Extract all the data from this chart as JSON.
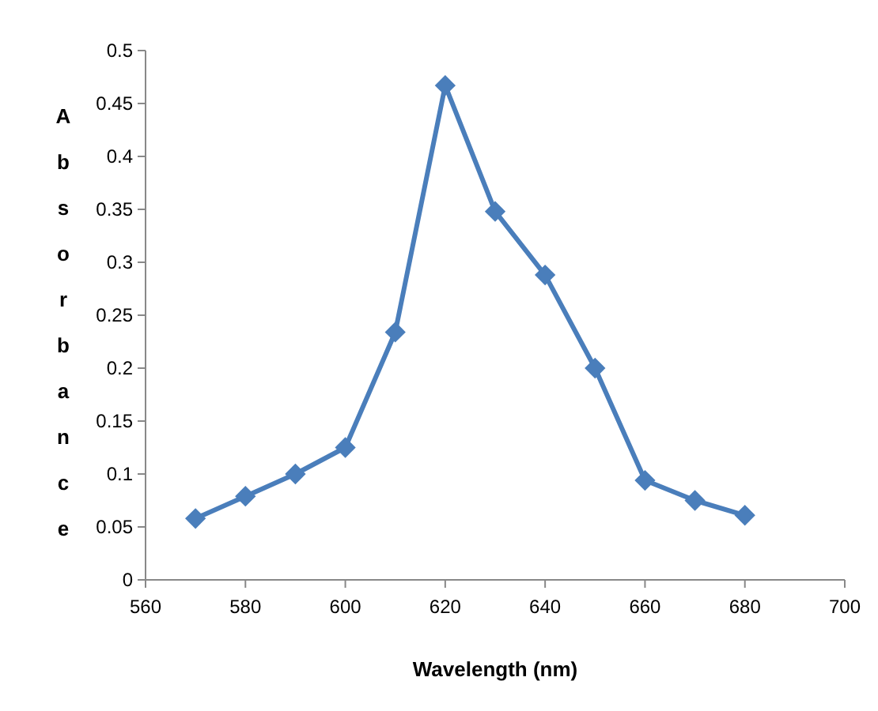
{
  "chart_data": {
    "type": "line",
    "xlabel": "Wavelength (nm)",
    "ylabel": "Absorbance",
    "x": [
      570,
      580,
      590,
      600,
      610,
      620,
      630,
      640,
      650,
      660,
      670,
      680
    ],
    "series": [
      {
        "color": "#4a7ebb",
        "values": [
          0.058,
          0.079,
          0.1,
          0.125,
          0.234,
          0.467,
          0.348,
          0.288,
          0.2,
          0.094,
          0.075,
          0.061
        ]
      }
    ],
    "xlim": [
      560,
      700
    ],
    "xticks": [
      560,
      580,
      600,
      620,
      640,
      660,
      680,
      700
    ],
    "ylim": [
      0,
      0.5
    ],
    "yticks": [
      0,
      0.05,
      0.1,
      0.15,
      0.2,
      0.25,
      0.3,
      0.35,
      0.4,
      0.45,
      0.5
    ],
    "grid": false,
    "marker": "diamond",
    "line_style": "solid"
  }
}
